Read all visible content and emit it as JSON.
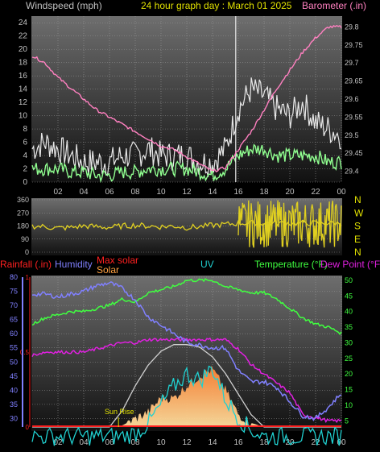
{
  "header": {
    "left_label": "Windspeed (mph)",
    "title": "24 hour graph day : March 01 2025",
    "right_label": "Barometer (.in)"
  },
  "colors": {
    "background": "#000000",
    "panel_top": "#6e6e6e",
    "panel_bottom": "#111111",
    "grid": "#9a9a9a",
    "wind_avg": "#90ff90",
    "wind_gust": "#e8e8e8",
    "barometer": "#ff80c0",
    "wind_dir": "#e0d020",
    "rain": "#ff2020",
    "humidity": "#8080ff",
    "max_solar": "#d0d0d0",
    "solar": "#ffa040",
    "uv": "#20d0d0",
    "temperature": "#40ff40",
    "dew_point": "#e020e0",
    "label_gray": "#c0c0c0",
    "label_yellow": "#e0e000"
  },
  "x_axis_hours": [
    "02",
    "04",
    "06",
    "08",
    "10",
    "12",
    "14",
    "16",
    "18",
    "20",
    "22",
    "00"
  ],
  "chart_data": [
    {
      "type": "line",
      "name": "wind-barometer",
      "x_hours": [
        0,
        1,
        2,
        3,
        4,
        5,
        6,
        7,
        8,
        9,
        10,
        11,
        12,
        13,
        14,
        15,
        16,
        17,
        18,
        19,
        20,
        21,
        22,
        23,
        24
      ],
      "y_left_ticks": [
        0,
        2,
        4,
        6,
        8,
        10,
        12,
        14,
        16,
        18,
        20,
        22,
        24
      ],
      "y_left_lim": [
        0,
        25
      ],
      "y_right_ticks": [
        "29.4",
        "29.45",
        "29.5",
        "29.55",
        "29.6",
        "29.65",
        "29.7",
        "29.75",
        "29.8"
      ],
      "y_right_lim": [
        29.37,
        29.83
      ],
      "series": [
        {
          "name": "Windspeed",
          "axis": "left",
          "values": [
            2,
            2,
            2,
            1.5,
            1.5,
            1,
            1,
            1.5,
            1.5,
            2,
            2,
            2,
            2,
            1.5,
            1,
            2,
            4,
            5,
            5,
            4,
            4,
            4,
            4,
            3,
            3
          ]
        },
        {
          "name": "Gust",
          "axis": "left",
          "values": [
            5,
            6,
            5,
            4,
            3,
            3,
            3,
            4,
            4,
            5,
            4,
            4,
            4,
            3,
            3,
            5,
            11,
            14,
            13,
            11,
            10,
            12,
            9,
            8,
            7
          ]
        },
        {
          "name": "Barometer",
          "axis": "right",
          "values": [
            29.72,
            29.7,
            29.66,
            29.63,
            29.6,
            29.57,
            29.55,
            29.53,
            29.51,
            29.49,
            29.47,
            29.46,
            29.44,
            29.42,
            29.4,
            29.41,
            29.46,
            29.51,
            29.57,
            29.63,
            29.68,
            29.73,
            29.77,
            29.8,
            29.8
          ]
        }
      ]
    },
    {
      "type": "line",
      "name": "wind-direction",
      "y_ticks": [
        "360",
        "270",
        "180",
        "90",
        "0"
      ],
      "y_lim": [
        0,
        360
      ],
      "direction_labels": [
        "N",
        "W",
        "S",
        "E",
        "N"
      ],
      "x_hours": [
        0,
        1,
        2,
        3,
        4,
        5,
        6,
        7,
        8,
        9,
        10,
        11,
        12,
        13,
        14,
        15,
        16,
        17,
        18,
        19,
        20,
        21,
        22,
        23,
        24
      ],
      "values": [
        180,
        175,
        165,
        170,
        180,
        175,
        170,
        180,
        185,
        180,
        175,
        180,
        170,
        175,
        185,
        190,
        200,
        230,
        240,
        220,
        250,
        230,
        240,
        250,
        240
      ]
    },
    {
      "type": "line",
      "name": "temp-humidity-solar",
      "left_labels": {
        "rainfall": "Rainfall (.in)",
        "humidity": "Humidity",
        "max_solar": "Max solar",
        "solar": "Solar",
        "uv": "UV"
      },
      "right_labels": {
        "temperature": "Temperature (°F)",
        "dew_point": "Dew Point (°F)"
      },
      "rain_ticks": [
        "1",
        "0.5",
        "0"
      ],
      "humidity_ticks": [
        80,
        75,
        70,
        65,
        60,
        55,
        50,
        45,
        40,
        35,
        30
      ],
      "humidity_lim": [
        27,
        80
      ],
      "temp_ticks": [
        50,
        45,
        40,
        35,
        30,
        25,
        20,
        15,
        10,
        5
      ],
      "temp_lim": [
        3,
        51
      ],
      "annotation": "Sun Rise",
      "x_hours": [
        0,
        1,
        2,
        3,
        4,
        5,
        6,
        7,
        8,
        9,
        10,
        11,
        12,
        13,
        14,
        15,
        16,
        17,
        18,
        19,
        20,
        21,
        22,
        23,
        24
      ],
      "series": [
        {
          "name": "Humidity",
          "axis": "humidity",
          "values": [
            74,
            74,
            73,
            74,
            75,
            77,
            78,
            76,
            72,
            66,
            63,
            60,
            57,
            56,
            55,
            55,
            47,
            43,
            43,
            41,
            36,
            31,
            30,
            34,
            39
          ]
        },
        {
          "name": "Temperature",
          "axis": "temp",
          "values": [
            36,
            38,
            39,
            40,
            40,
            41,
            42,
            44,
            43,
            46,
            47,
            48,
            50,
            50,
            50,
            48,
            47,
            46,
            46,
            44,
            41,
            38,
            36,
            35,
            33
          ]
        },
        {
          "name": "Dew Point",
          "axis": "temp",
          "values": [
            26,
            27,
            27,
            27,
            27,
            28,
            29,
            30,
            30,
            31,
            31,
            31,
            31,
            31,
            31,
            31,
            28,
            23,
            20,
            17,
            14,
            7,
            6,
            5,
            5
          ]
        },
        {
          "name": "Max solar",
          "axis": "solar",
          "values": [
            0,
            0,
            0,
            0,
            0,
            0,
            0,
            0.2,
            0.5,
            0.75,
            0.92,
            1,
            1,
            0.97,
            0.85,
            0.65,
            0.4,
            0.15,
            0,
            0,
            0,
            0,
            0,
            0,
            0
          ]
        },
        {
          "name": "Solar",
          "axis": "solar",
          "values": [
            0,
            0,
            0,
            0,
            0,
            0,
            0,
            0.02,
            0.1,
            0.18,
            0.35,
            0.35,
            0.5,
            0.62,
            0.7,
            0.45,
            0.15,
            0.05,
            0,
            0,
            0,
            0,
            0,
            0,
            0
          ]
        },
        {
          "name": "UV",
          "axis": "temp",
          "values": [
            0,
            0,
            0,
            0,
            0,
            0,
            0,
            0,
            1,
            4,
            10,
            16,
            20,
            18,
            22,
            12,
            6,
            2,
            0,
            0,
            0,
            0,
            0,
            0,
            0
          ]
        }
      ]
    }
  ]
}
